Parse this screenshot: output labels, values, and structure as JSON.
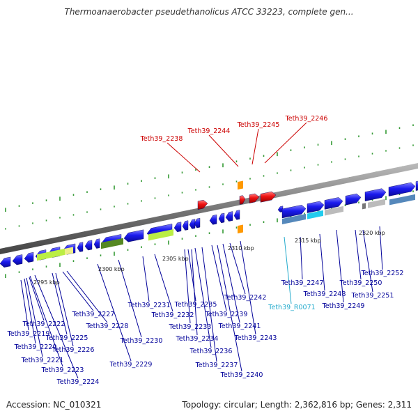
{
  "title": "Thermoanaerobacter pseudethanolicus ATCC 33223, complete gen...",
  "footer": {
    "accession": "Accession: NC_010321",
    "summary": "Topology: circular; Length: 2,362,816 bp; Genes: 2,311"
  },
  "colors": {
    "forward_gene": "#1a1aee",
    "highlight_gene": "#ee1111",
    "rna_label": "#22aacc",
    "gene_label": "#000099",
    "highlight_label": "#cc0000",
    "orange_feature": "#ff9900",
    "lime_feature": "#bbee44",
    "olive_feature": "#558822",
    "steel_feature": "#5588bb",
    "cyan_feature": "#22ccee",
    "grey_feature": "#bbbbbb",
    "tick_color": "#339933"
  },
  "scale_labels": [
    "2295 kbp",
    "2300 kbp",
    "2305 kbp",
    "2310 kbp",
    "2315 kbp",
    "2320 kbp"
  ],
  "top_labels": [
    "Teth39_2238",
    "Teth39_2244",
    "Teth39_2245",
    "Teth39_2246"
  ],
  "rna_labels": [
    "Teth39_R0071"
  ],
  "bottom_labels": [
    "Teth39_2219",
    "Teth39_2220",
    "Teth39_2221",
    "Teth39_2222",
    "Teth39_2223",
    "Teth39_2224",
    "Teth39_2225",
    "Teth39_2226",
    "Teth39_2227",
    "Teth39_2228",
    "Teth39_2229",
    "Teth39_2230",
    "Teth39_2231",
    "Teth39_2232",
    "Teth39_2233",
    "Teth39_2234",
    "Teth39_2235",
    "Teth39_2236",
    "Teth39_2237",
    "Teth39_2239",
    "Teth39_2240",
    "Teth39_2241",
    "Teth39_2242",
    "Teth39_2243",
    "Teth39_2247",
    "Teth39_2248",
    "Teth39_2249",
    "Teth39_2250",
    "Teth39_2251",
    "Teth39_2252"
  ]
}
